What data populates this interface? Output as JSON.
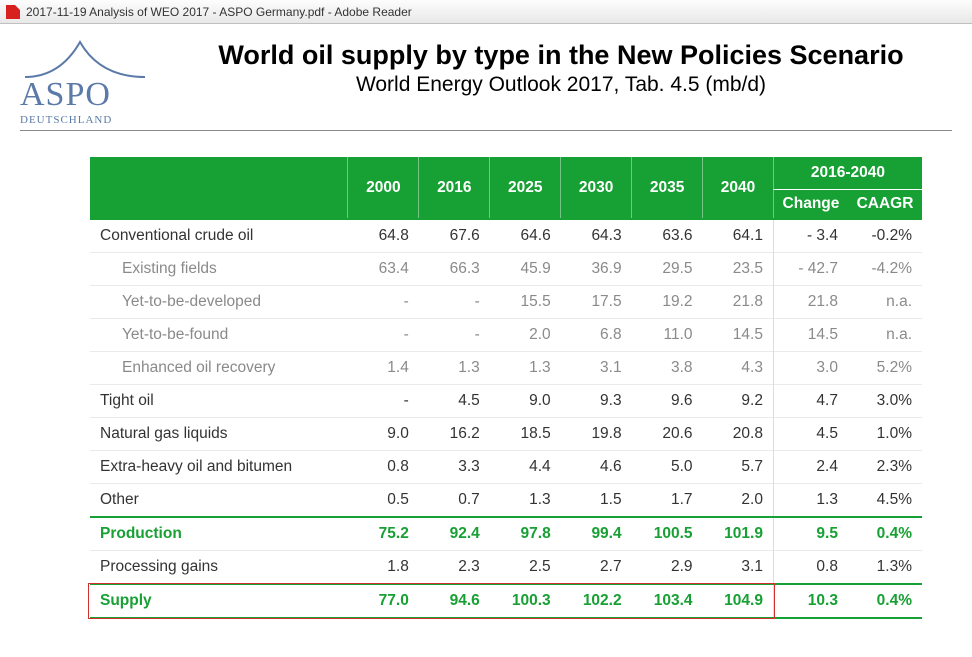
{
  "window": {
    "title": "2017-11-19 Analysis of WEO 2017 - ASPO Germany.pdf - Adobe Reader"
  },
  "logo": {
    "name": "ASPO",
    "sub": "DEUTSCHLAND"
  },
  "title": {
    "main": "World oil supply by type in the New Policies Scenario",
    "sub": "World Energy Outlook 2017, Tab. 4.5 (mb/d)"
  },
  "table": {
    "header": {
      "years": [
        "2000",
        "2016",
        "2025",
        "2030",
        "2035",
        "2040"
      ],
      "span": "2016-2040",
      "change": "Change",
      "caagr": "CAAGR"
    },
    "rows": [
      {
        "label": "Conventional crude oil",
        "cells": [
          "64.8",
          "67.6",
          "64.6",
          "64.3",
          "63.6",
          "64.1",
          "- 3.4",
          "-0.2%"
        ]
      },
      {
        "label": "Existing fields",
        "indent": true,
        "faded": true,
        "cells": [
          "63.4",
          "66.3",
          "45.9",
          "36.9",
          "29.5",
          "23.5",
          "- 42.7",
          "-4.2%"
        ]
      },
      {
        "label": "Yet-to-be-developed",
        "indent": true,
        "faded": true,
        "cells": [
          "-",
          "-",
          "15.5",
          "17.5",
          "19.2",
          "21.8",
          "21.8",
          "n.a."
        ]
      },
      {
        "label": "Yet-to-be-found",
        "indent": true,
        "faded": true,
        "cells": [
          "-",
          "-",
          "2.0",
          "6.8",
          "11.0",
          "14.5",
          "14.5",
          "n.a."
        ]
      },
      {
        "label": "Enhanced oil recovery",
        "indent": true,
        "faded": true,
        "cells": [
          "1.4",
          "1.3",
          "1.3",
          "3.1",
          "3.8",
          "4.3",
          "3.0",
          "5.2%"
        ]
      },
      {
        "label": "Tight oil",
        "cells": [
          "-",
          "4.5",
          "9.0",
          "9.3",
          "9.6",
          "9.2",
          "4.7",
          "3.0%"
        ]
      },
      {
        "label": "Natural gas liquids",
        "cells": [
          "9.0",
          "16.2",
          "18.5",
          "19.8",
          "20.6",
          "20.8",
          "4.5",
          "1.0%"
        ]
      },
      {
        "label": "Extra-heavy oil and bitumen",
        "cells": [
          "0.8",
          "3.3",
          "4.4",
          "4.6",
          "5.0",
          "5.7",
          "2.4",
          "2.3%"
        ]
      },
      {
        "label": "Other",
        "cells": [
          "0.5",
          "0.7",
          "1.3",
          "1.5",
          "1.7",
          "2.0",
          "1.3",
          "4.5%"
        ]
      },
      {
        "label": "Production",
        "green": true,
        "greenTop": true,
        "cells": [
          "75.2",
          "92.4",
          "97.8",
          "99.4",
          "100.5",
          "101.9",
          "9.5",
          "0.4%"
        ]
      },
      {
        "label": "Processing gains",
        "cells": [
          "1.8",
          "2.3",
          "2.5",
          "2.7",
          "2.9",
          "3.1",
          "0.8",
          "1.3%"
        ]
      },
      {
        "label": "Supply",
        "green": true,
        "greenTop": true,
        "greenBottom": true,
        "cells": [
          "77.0",
          "94.6",
          "100.3",
          "102.2",
          "103.4",
          "104.9",
          "10.3",
          "0.4%"
        ]
      }
    ]
  },
  "colors": {
    "header_bg": "#17a033",
    "header_fg": "#ffffff",
    "faded": "#8a8a8a",
    "logo": "#5b7aa8",
    "red_box": "#d22f2f"
  }
}
